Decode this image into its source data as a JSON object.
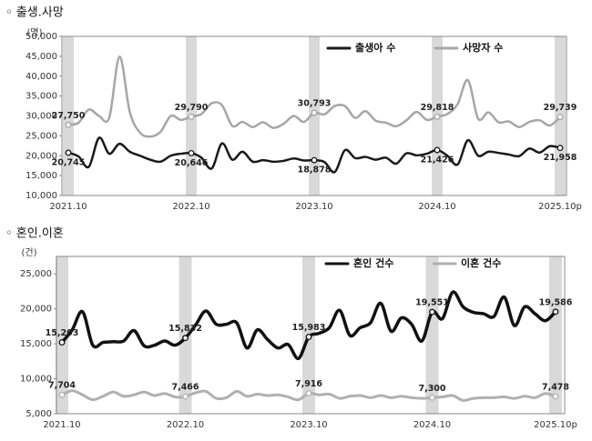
{
  "chart_data": [
    {
      "type": "line",
      "title": "◦ 출생.사망",
      "y_label": "(명)",
      "categories": [
        "2021.10",
        null,
        null,
        null,
        null,
        null,
        null,
        null,
        null,
        null,
        null,
        null,
        "2022.10",
        null,
        null,
        null,
        null,
        null,
        null,
        null,
        null,
        null,
        null,
        null,
        "2023.10",
        null,
        null,
        null,
        null,
        null,
        null,
        null,
        null,
        null,
        null,
        null,
        "2024.10",
        null,
        null,
        null,
        null,
        null,
        null,
        null,
        null,
        null,
        null,
        null,
        "2025.10p"
      ],
      "ylim": [
        10000,
        50000
      ],
      "yticks": [
        {
          "value": 10000,
          "label": "10,000"
        },
        {
          "value": 15000,
          "label": "15,000"
        },
        {
          "value": 20000,
          "label": "20,000"
        },
        {
          "value": 25000,
          "label": "25,000"
        },
        {
          "value": 30000,
          "label": "30,000"
        },
        {
          "value": 35000,
          "label": "35,000"
        },
        {
          "value": 40000,
          "label": "40,000"
        },
        {
          "value": 45000,
          "label": "45,000"
        },
        {
          "value": 50000,
          "label": "50,000"
        }
      ],
      "grid": false,
      "legend": "top-right",
      "band_color": "#d9d9d9",
      "series": [
        {
          "name": "출생아 수",
          "color": "#1a1a1a",
          "label_side": "below",
          "values": [
            20745,
            19800,
            17200,
            24500,
            20500,
            23000,
            21000,
            20000,
            19000,
            18500,
            20000,
            20500,
            20646,
            19500,
            16800,
            23100,
            19000,
            21000,
            18500,
            18900,
            18500,
            18700,
            19300,
            18800,
            18878,
            18400,
            15900,
            21400,
            19400,
            19700,
            19000,
            19500,
            18000,
            20600,
            20100,
            20500,
            21426,
            20000,
            17800,
            23900,
            20000,
            21000,
            20700,
            20300,
            19900,
            21800,
            20800,
            22400,
            21958
          ],
          "value_labels": [
            "20,745",
            null,
            null,
            null,
            null,
            null,
            null,
            null,
            null,
            null,
            null,
            null,
            "20,646",
            null,
            null,
            null,
            null,
            null,
            null,
            null,
            null,
            null,
            null,
            null,
            "18,878",
            null,
            null,
            null,
            null,
            null,
            null,
            null,
            null,
            null,
            null,
            null,
            "21,426",
            null,
            null,
            null,
            null,
            null,
            null,
            null,
            null,
            null,
            null,
            null,
            "21,958"
          ]
        },
        {
          "name": "사망자 수",
          "color": "#a6a6a6",
          "label_side": "above",
          "values": [
            27750,
            28300,
            31600,
            30000,
            29600,
            44900,
            31000,
            25800,
            24800,
            26000,
            30000,
            29000,
            29790,
            30500,
            33200,
            32700,
            27500,
            28500,
            27200,
            28400,
            27000,
            28000,
            30000,
            28500,
            30793,
            30400,
            32500,
            32500,
            29500,
            31200,
            28800,
            28300,
            27400,
            28900,
            31000,
            29000,
            29818,
            30500,
            33000,
            39000,
            29300,
            30900,
            28400,
            28600,
            27200,
            28500,
            28900,
            27600,
            29739
          ],
          "value_labels": [
            "27,750",
            null,
            null,
            null,
            null,
            null,
            null,
            null,
            null,
            null,
            null,
            null,
            "29,790",
            null,
            null,
            null,
            null,
            null,
            null,
            null,
            null,
            null,
            null,
            null,
            "30,793",
            null,
            null,
            null,
            null,
            null,
            null,
            null,
            null,
            null,
            null,
            null,
            "29,818",
            null,
            null,
            null,
            null,
            null,
            null,
            null,
            null,
            null,
            null,
            null,
            "29,739"
          ]
        }
      ]
    },
    {
      "type": "line",
      "title": "◦ 혼인.이혼",
      "y_label": "(건)",
      "categories": [
        "2021.10",
        null,
        null,
        null,
        null,
        null,
        null,
        null,
        null,
        null,
        null,
        null,
        "2022.10",
        null,
        null,
        null,
        null,
        null,
        null,
        null,
        null,
        null,
        null,
        null,
        "2023.10",
        null,
        null,
        null,
        null,
        null,
        null,
        null,
        null,
        null,
        null,
        null,
        "2024.10",
        null,
        null,
        null,
        null,
        null,
        null,
        null,
        null,
        null,
        null,
        null,
        "2025.10p"
      ],
      "ylim": [
        5000,
        27500
      ],
      "yticks": [
        {
          "value": 5000,
          "label": "5,000"
        },
        {
          "value": 10000,
          "label": "10,000"
        },
        {
          "value": 15000,
          "label": "15,000"
        },
        {
          "value": 20000,
          "label": "20,000"
        },
        {
          "value": 25000,
          "label": "25,000"
        }
      ],
      "grid": false,
      "legend": "top-right",
      "band_color": "#d9d9d9",
      "series": [
        {
          "name": "혼인 건수",
          "color": "#111111",
          "label_side": "above",
          "values": [
            15203,
            17000,
            19600,
            14800,
            15200,
            15300,
            15400,
            16900,
            14700,
            14800,
            15400,
            14800,
            15832,
            17700,
            19700,
            17800,
            17800,
            18000,
            14400,
            17000,
            15600,
            14400,
            14900,
            12900,
            15983,
            16500,
            17300,
            19800,
            16200,
            17300,
            18000,
            20800,
            16800,
            18700,
            17800,
            15400,
            19551,
            18600,
            22400,
            20300,
            19500,
            19300,
            18900,
            21700,
            17600,
            20300,
            19300,
            18300,
            19586
          ],
          "value_labels": [
            "15,203",
            null,
            null,
            null,
            null,
            null,
            null,
            null,
            null,
            null,
            null,
            null,
            "15,832",
            null,
            null,
            null,
            null,
            null,
            null,
            null,
            null,
            null,
            null,
            null,
            "15,983",
            null,
            null,
            null,
            null,
            null,
            null,
            null,
            null,
            null,
            null,
            null,
            "19,551",
            null,
            null,
            null,
            null,
            null,
            null,
            null,
            null,
            null,
            null,
            null,
            "19,586"
          ]
        },
        {
          "name": "이혼 건수",
          "color": "#b0b0b0",
          "label_side": "above",
          "values": [
            7704,
            8300,
            7700,
            7000,
            7500,
            8100,
            7500,
            7700,
            8100,
            7600,
            7900,
            7400,
            7466,
            8000,
            8200,
            7200,
            7300,
            8200,
            7500,
            7800,
            7600,
            7700,
            7400,
            7000,
            7916,
            7700,
            7800,
            7200,
            7500,
            7600,
            7300,
            7600,
            7300,
            7500,
            7300,
            7200,
            7300,
            7400,
            7600,
            6900,
            7200,
            7300,
            7300,
            7400,
            7200,
            7500,
            7300,
            7900,
            7478
          ],
          "value_labels": [
            "7,704",
            null,
            null,
            null,
            null,
            null,
            null,
            null,
            null,
            null,
            null,
            null,
            "7,466",
            null,
            null,
            null,
            null,
            null,
            null,
            null,
            null,
            null,
            null,
            null,
            "7,916",
            null,
            null,
            null,
            null,
            null,
            null,
            null,
            null,
            null,
            null,
            null,
            "7,300",
            null,
            null,
            null,
            null,
            null,
            null,
            null,
            null,
            null,
            null,
            null,
            "7,478"
          ]
        }
      ]
    }
  ]
}
